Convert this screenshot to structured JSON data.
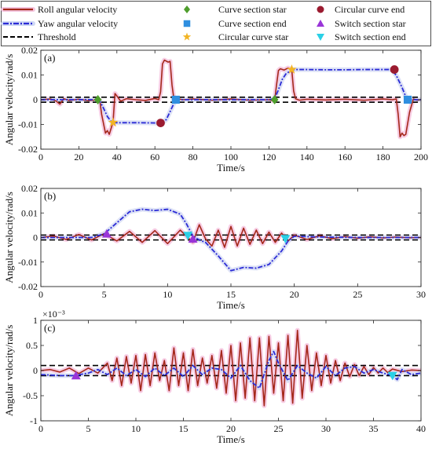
{
  "legend": [
    {
      "label": "Roll angular velocity",
      "color": "#a5281b",
      "style": "solid-glow"
    },
    {
      "label": "Yaw angular velocity",
      "color": "#2b2bd6",
      "style": "dashdot-glow"
    },
    {
      "label": "Threshold",
      "color": "#000000",
      "style": "dashed"
    },
    {
      "label": "Curve section star",
      "color": "#4f9e2d",
      "marker": "diamond"
    },
    {
      "label": "Curve section end",
      "color": "#2f8fe0",
      "marker": "square"
    },
    {
      "label": "Circular curve star",
      "color": "#f2b424",
      "marker": "star"
    },
    {
      "label": "Circular curve end",
      "color": "#9b1b30",
      "marker": "circle"
    },
    {
      "label": "Switch section star",
      "color": "#9a35d8",
      "marker": "triangle-up"
    },
    {
      "label": "Switch section end",
      "color": "#2ad0e6",
      "marker": "triangle-down"
    }
  ],
  "chart_data": [
    {
      "id": "a",
      "panel_label": "(a)",
      "type": "line",
      "xlabel": "Time/s",
      "ylabel": "Angular velocity/rad/s",
      "xlim": [
        0,
        200
      ],
      "ylim": [
        -0.02,
        0.02
      ],
      "xticks": [
        0,
        20,
        40,
        60,
        80,
        100,
        120,
        140,
        160,
        180,
        200
      ],
      "yticks": [
        -0.02,
        -0.01,
        0,
        0.01,
        0.02
      ],
      "ytick_labels": [
        "-0.02",
        "-0.01",
        "0",
        "0.01",
        "0.02"
      ],
      "thresholds": [
        0.001,
        -0.001
      ],
      "series": [
        {
          "name": "Roll angular velocity",
          "color": "#a5281b",
          "glow": true,
          "x": [
            0,
            5,
            8,
            10,
            12,
            15,
            20,
            25,
            30,
            31,
            32,
            34,
            35,
            36,
            38,
            39,
            40,
            42,
            45,
            50,
            55,
            60,
            62,
            63,
            64,
            65,
            67,
            68,
            69,
            70,
            71,
            72,
            75,
            80,
            90,
            100,
            110,
            120,
            122,
            123,
            124,
            125,
            126,
            128,
            130,
            132,
            133,
            134,
            136,
            140,
            150,
            160,
            170,
            180,
            185,
            187,
            188,
            189,
            190,
            191,
            192,
            194,
            196,
            198,
            200
          ],
          "y": [
            0,
            0.0003,
            -0.0005,
            -0.0018,
            0.0004,
            -0.0003,
            0.0002,
            -0.0004,
            0,
            -0.0002,
            -0.006,
            -0.0135,
            -0.0125,
            -0.014,
            -0.009,
            0.0025,
            0.0015,
            -0.0006,
            0.0004,
            0,
            -0.0003,
            0.0005,
            0,
            0.0032,
            0.0145,
            0.016,
            0.0152,
            0.0155,
            0.006,
            0.0003,
            -0.0004,
            0.0003,
            0,
            0.0003,
            -0.0002,
            0.0003,
            -0.0002,
            0,
            -0.0004,
            -0.0003,
            0.006,
            0.0118,
            0.0125,
            0.012,
            0.0128,
            0.0122,
            0.0035,
            0.0004,
            -0.0002,
            0.0002,
            -0.0001,
            0.0002,
            -0.0002,
            0.0003,
            0,
            0.0003,
            -0.006,
            -0.015,
            -0.0135,
            -0.0145,
            -0.014,
            -0.005,
            0.0003,
            -0.0002,
            0
          ]
        },
        {
          "name": "Yaw angular velocity",
          "color": "#2b2bd6",
          "dash": "dashdot",
          "glow": true,
          "x": [
            0,
            30,
            31,
            33,
            35,
            37,
            38,
            40,
            50,
            60,
            62,
            64,
            66,
            68,
            70,
            71,
            72,
            80,
            100,
            120,
            123,
            125,
            127,
            129,
            131,
            132,
            133,
            140,
            150,
            160,
            170,
            180,
            184,
            185,
            187,
            190,
            192,
            193,
            194,
            200
          ],
          "y": [
            0,
            0,
            -0.0005,
            -0.0035,
            -0.0068,
            -0.0088,
            -0.0092,
            -0.0093,
            -0.0093,
            -0.0094,
            -0.0094,
            -0.0093,
            -0.008,
            -0.0048,
            -0.0015,
            -0.0004,
            0,
            0,
            0,
            0,
            0.0005,
            0.004,
            0.0082,
            0.0105,
            0.0115,
            0.0118,
            0.0122,
            0.0122,
            0.0121,
            0.0121,
            0.0122,
            0.0122,
            0.0122,
            0.0118,
            0.0098,
            0.005,
            0.0012,
            0.0002,
            0,
            0
          ]
        }
      ],
      "markers": [
        {
          "kind": "diamond",
          "color": "#4f9e2d",
          "x": 30,
          "y": 0
        },
        {
          "kind": "star",
          "color": "#f2b424",
          "x": 38,
          "y": -0.0092
        },
        {
          "kind": "circle",
          "color": "#9b1b30",
          "x": 63,
          "y": -0.0094
        },
        {
          "kind": "square",
          "color": "#2f8fe0",
          "x": 71,
          "y": 0
        },
        {
          "kind": "diamond",
          "color": "#4f9e2d",
          "x": 123,
          "y": 0
        },
        {
          "kind": "star",
          "color": "#f2b424",
          "x": 132,
          "y": 0.0122
        },
        {
          "kind": "circle",
          "color": "#9b1b30",
          "x": 186,
          "y": 0.0122
        },
        {
          "kind": "square",
          "color": "#2f8fe0",
          "x": 193,
          "y": 0
        }
      ]
    },
    {
      "id": "b",
      "panel_label": "(b)",
      "type": "line",
      "xlabel": "Time/s",
      "ylabel": "Angular velocity/rad/s",
      "xlim": [
        0,
        30
      ],
      "ylim": [
        -0.02,
        0.02
      ],
      "xticks": [
        0,
        5,
        10,
        15,
        20,
        25,
        30
      ],
      "yticks": [
        -0.02,
        -0.01,
        0,
        0.01,
        0.02
      ],
      "ytick_labels": [
        "-0.02",
        "-0.01",
        "0",
        "0.01",
        "0.02"
      ],
      "thresholds": [
        0.001,
        -0.001
      ],
      "series": [
        {
          "name": "Roll angular velocity",
          "color": "#a5281b",
          "glow": true,
          "x": [
            0,
            1,
            2,
            3,
            4,
            5,
            6,
            7,
            8,
            9,
            10,
            11,
            12,
            12.5,
            13,
            13.5,
            14,
            14.5,
            15,
            15.5,
            16,
            16.5,
            17,
            17.5,
            18,
            18.5,
            19,
            19.5,
            20,
            21,
            22,
            23,
            24,
            25,
            26,
            27,
            28,
            29,
            30
          ],
          "y": [
            0,
            0.0006,
            -0.0008,
            0.0012,
            -0.001,
            0.0016,
            -0.0014,
            0.0025,
            -0.002,
            0.0028,
            -0.0025,
            0.003,
            -0.002,
            0.0052,
            -0.0006,
            -0.0035,
            0.003,
            -0.004,
            0.0045,
            -0.0035,
            0.0038,
            -0.0028,
            0.003,
            -0.0025,
            0.0022,
            -0.002,
            0.0018,
            -0.0015,
            0.001,
            -0.0008,
            0.0007,
            -0.0005,
            0.0004,
            -0.0003,
            0.0003,
            -0.0002,
            0.0002,
            -0.0001,
            0
          ]
        },
        {
          "name": "Yaw angular velocity",
          "color": "#2b2bd6",
          "dash": "dashdot",
          "glow": true,
          "x": [
            0,
            4,
            5,
            6,
            7,
            8,
            9,
            10,
            11,
            11.5,
            12,
            12.5,
            13,
            14,
            15,
            16,
            17,
            18,
            19,
            19.5,
            20,
            22,
            25,
            30
          ],
          "y": [
            0,
            0,
            0.0015,
            0.006,
            0.0105,
            0.0115,
            0.011,
            0.0115,
            0.0095,
            0.0055,
            0.0005,
            -0.001,
            -0.002,
            -0.0075,
            -0.0135,
            -0.0122,
            -0.0125,
            -0.011,
            -0.0055,
            -0.0015,
            0.0005,
            0.0002,
            0,
            0
          ]
        }
      ],
      "markers": [
        {
          "kind": "triangle-up",
          "color": "#9a35d8",
          "x": 5.2,
          "y": 0.0015
        },
        {
          "kind": "triangle-down",
          "color": "#2ad0e6",
          "x": 11.6,
          "y": 0.0008
        },
        {
          "kind": "triangle-up",
          "color": "#9a35d8",
          "x": 12,
          "y": -0.0006
        },
        {
          "kind": "triangle-down",
          "color": "#2ad0e6",
          "x": 19.3,
          "y": -0.0005
        }
      ]
    },
    {
      "id": "c",
      "panel_label": "(c)",
      "type": "line",
      "xlabel": "Time/s",
      "ylabel": "Angular velocity/rad/s",
      "exponent_label": "×10⁻³",
      "xlim": [
        0,
        40
      ],
      "ylim": [
        -1,
        1
      ],
      "xticks": [
        0,
        5,
        10,
        15,
        20,
        25,
        30,
        35,
        40
      ],
      "yticks": [
        -1,
        -0.5,
        0,
        0.5,
        1
      ],
      "ytick_labels": [
        "-1",
        "-0.5",
        "0",
        "0.5",
        "1"
      ],
      "thresholds": [
        0.1,
        -0.1
      ],
      "series": [
        {
          "name": "Roll angular velocity",
          "color": "#a5281b",
          "glow": true,
          "x": [
            0,
            1,
            2,
            3,
            4,
            5,
            6,
            7,
            7.5,
            8,
            8.5,
            9,
            9.5,
            10,
            10.5,
            11,
            11.5,
            12,
            12.5,
            13,
            13.5,
            14,
            14.5,
            15,
            15.5,
            16,
            16.5,
            17,
            17.5,
            18,
            18.5,
            19,
            19.5,
            20,
            20.5,
            21,
            21.5,
            22,
            22.5,
            23,
            23.5,
            24,
            24.5,
            25,
            25.5,
            26,
            26.5,
            27,
            27.5,
            28,
            28.5,
            29,
            29.5,
            30,
            30.5,
            31,
            31.5,
            32,
            32.5,
            33,
            33.5,
            34,
            34.5,
            35,
            35.5,
            36,
            36.5,
            37,
            38,
            39,
            40
          ],
          "y": [
            0,
            0.02,
            -0.03,
            0.05,
            -0.06,
            0.05,
            -0.05,
            0.15,
            -0.2,
            0.25,
            -0.3,
            0.28,
            -0.25,
            0.3,
            -0.4,
            0.32,
            -0.3,
            0.35,
            -0.2,
            0.2,
            -0.4,
            0.45,
            -0.3,
            0.35,
            -0.4,
            0.42,
            -0.3,
            0.25,
            -0.25,
            0.3,
            -0.35,
            0.4,
            -0.45,
            0.5,
            -0.6,
            0.55,
            -0.55,
            0.65,
            -0.6,
            0.65,
            -0.7,
            0.68,
            -0.45,
            0.55,
            -0.6,
            0.7,
            -0.65,
            0.8,
            -0.55,
            0.5,
            -0.4,
            0.35,
            -0.3,
            0.3,
            -0.25,
            0.2,
            -0.2,
            0.15,
            -0.12,
            0.12,
            -0.1,
            0.08,
            -0.08,
            0.06,
            -0.05,
            0.05,
            -0.04,
            0.03,
            -0.02,
            0.01,
            0
          ]
        },
        {
          "name": "Yaw angular velocity",
          "color": "#2b2bd6",
          "dash": "dashdot",
          "glow": true,
          "x": [
            0,
            2,
            3.5,
            5,
            6,
            7,
            8,
            9,
            10,
            11,
            12,
            13,
            14,
            15,
            16,
            17,
            18,
            19,
            20,
            21,
            22,
            23,
            24,
            24.5,
            25,
            26,
            27,
            28,
            29,
            30,
            31,
            32,
            33,
            34,
            35,
            36,
            37,
            37.5,
            38,
            39,
            40
          ],
          "y": [
            -0.08,
            -0.1,
            -0.1,
            -0.05,
            0.02,
            -0.08,
            0.05,
            -0.1,
            0.02,
            -0.12,
            0.05,
            -0.1,
            0.05,
            -0.12,
            0.1,
            -0.08,
            0.05,
            0.02,
            -0.15,
            0.1,
            -0.2,
            -0.35,
            0.2,
            0.38,
            0.15,
            -0.2,
            0.1,
            -0.05,
            -0.15,
            0.08,
            -0.1,
            0.05,
            0.08,
            -0.05,
            0.02,
            -0.05,
            -0.1,
            -0.18,
            0.02,
            -0.08,
            -0.05
          ]
        }
      ],
      "markers": [
        {
          "kind": "triangle-up",
          "color": "#9a35d8",
          "x": 3.7,
          "y": -0.1
        },
        {
          "kind": "triangle-down",
          "color": "#2ad0e6",
          "x": 37,
          "y": -0.1
        }
      ]
    }
  ]
}
